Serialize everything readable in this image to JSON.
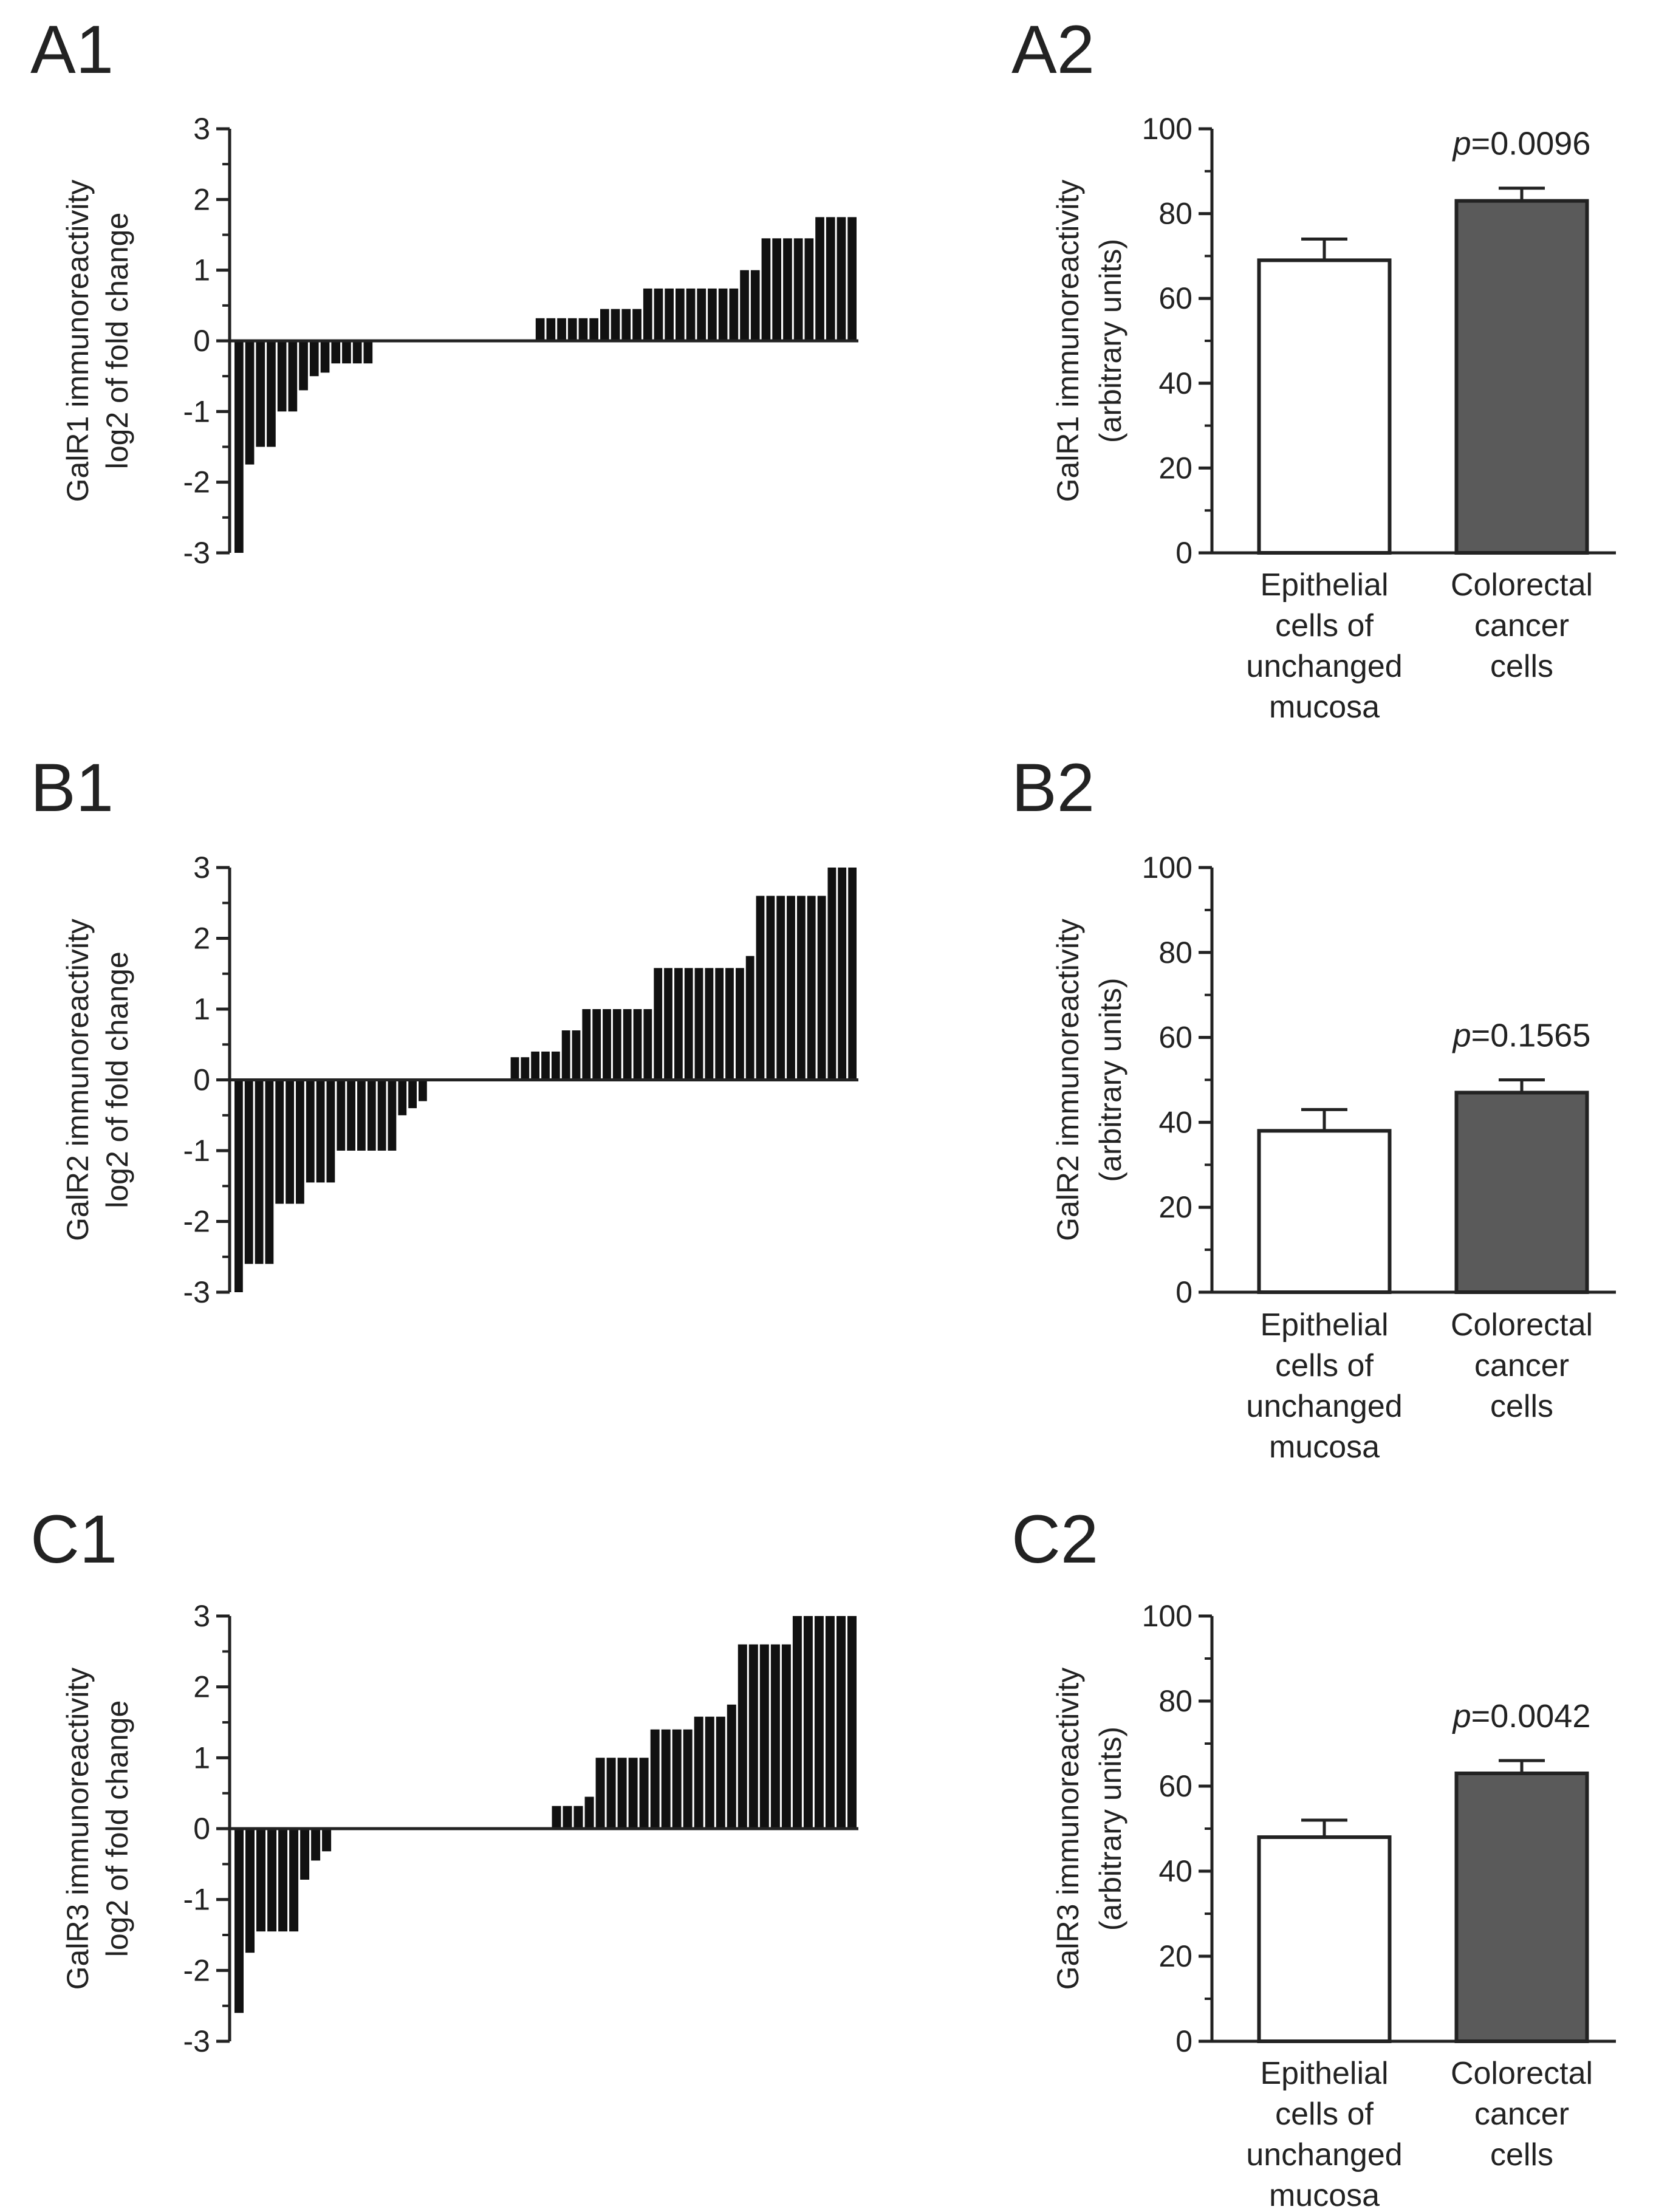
{
  "chart_data": [
    {
      "id": "A1",
      "panel_label": "A1",
      "type": "bar",
      "ylabel_lines": [
        "GalR1 immunoreactivity",
        "log2 of fold change"
      ],
      "ylim": [
        -3,
        3
      ],
      "yticks": [
        3,
        2,
        1,
        0,
        -1,
        -2,
        -3
      ],
      "values": [
        -3,
        -1.75,
        -1.5,
        -1.5,
        -1,
        -1,
        -0.7,
        -0.5,
        -0.45,
        -0.32,
        -0.32,
        -0.32,
        -0.32,
        0,
        0,
        0,
        0,
        0,
        0,
        0,
        0,
        0,
        0,
        0,
        0,
        0,
        0,
        0,
        0.32,
        0.32,
        0.32,
        0.32,
        0.32,
        0.32,
        0.45,
        0.45,
        0.45,
        0.45,
        0.74,
        0.74,
        0.74,
        0.74,
        0.74,
        0.74,
        0.74,
        0.74,
        0.74,
        1,
        1,
        1.45,
        1.45,
        1.45,
        1.45,
        1.45,
        1.75,
        1.75,
        1.75,
        1.75
      ]
    },
    {
      "id": "B1",
      "panel_label": "B1",
      "type": "bar",
      "ylabel_lines": [
        "GalR2 immunoreactivity",
        "log2 of fold change"
      ],
      "ylim": [
        -3,
        3
      ],
      "yticks": [
        3,
        2,
        1,
        0,
        -1,
        -2,
        -3
      ],
      "values": [
        -3,
        -2.6,
        -2.6,
        -2.6,
        -1.75,
        -1.75,
        -1.75,
        -1.45,
        -1.45,
        -1.45,
        -1,
        -1,
        -1,
        -1,
        -1,
        -1,
        -0.5,
        -0.4,
        -0.3,
        0,
        0,
        0,
        0,
        0,
        0,
        0,
        0,
        0.32,
        0.32,
        0.4,
        0.4,
        0.4,
        0.7,
        0.7,
        1,
        1,
        1,
        1,
        1,
        1,
        1,
        1.58,
        1.58,
        1.58,
        1.58,
        1.58,
        1.58,
        1.58,
        1.58,
        1.58,
        1.75,
        2.6,
        2.6,
        2.6,
        2.6,
        2.6,
        2.6,
        2.6,
        3,
        3,
        3
      ]
    },
    {
      "id": "C1",
      "panel_label": "C1",
      "type": "bar",
      "ylabel_lines": [
        "GalR3 immunoreactivity",
        "log2 of fold change"
      ],
      "ylim": [
        -3,
        3
      ],
      "yticks": [
        3,
        2,
        1,
        0,
        -1,
        -2,
        -3
      ],
      "values": [
        -2.6,
        -1.75,
        -1.45,
        -1.45,
        -1.45,
        -1.45,
        -0.72,
        -0.45,
        -0.32,
        0,
        0,
        0,
        0,
        0,
        0,
        0,
        0,
        0,
        0,
        0,
        0,
        0,
        0,
        0,
        0,
        0,
        0,
        0,
        0,
        0.32,
        0.32,
        0.32,
        0.45,
        1,
        1,
        1,
        1,
        1,
        1.4,
        1.4,
        1.4,
        1.4,
        1.58,
        1.58,
        1.58,
        1.75,
        2.6,
        2.6,
        2.6,
        2.6,
        2.6,
        3,
        3,
        3,
        3,
        3,
        3
      ]
    },
    {
      "id": "A2",
      "panel_label": "A2",
      "type": "bar",
      "ylabel_lines": [
        "GalR1 immunoreactivity",
        "(arbitrary units)"
      ],
      "ylim": [
        0,
        100
      ],
      "yticks": [
        100,
        80,
        60,
        40,
        20,
        0
      ],
      "categories": [
        [
          "Epithelial",
          "cells of",
          "unchanged",
          "mucosa"
        ],
        [
          "Colorectal",
          "cancer",
          "cells"
        ]
      ],
      "values": [
        69,
        83
      ],
      "errors": [
        5,
        3
      ],
      "bar_colors": [
        "#ffffff",
        "#5a5a5a"
      ],
      "p_value": {
        "prefix": "p",
        "text": "=0.0096"
      }
    },
    {
      "id": "B2",
      "panel_label": "B2",
      "type": "bar",
      "ylabel_lines": [
        "GalR2 immunoreactivity",
        "(arbitrary units)"
      ],
      "ylim": [
        0,
        100
      ],
      "yticks": [
        100,
        80,
        60,
        40,
        20,
        0
      ],
      "categories": [
        [
          "Epithelial",
          "cells of",
          "unchanged",
          "mucosa"
        ],
        [
          "Colorectal",
          "cancer",
          "cells"
        ]
      ],
      "values": [
        38,
        47
      ],
      "errors": [
        5,
        3
      ],
      "bar_colors": [
        "#ffffff",
        "#5a5a5a"
      ],
      "p_value": {
        "prefix": "p",
        "text": "=0.1565"
      }
    },
    {
      "id": "C2",
      "panel_label": "C2",
      "type": "bar",
      "ylabel_lines": [
        "GalR3 immunoreactivity",
        "(arbitrary units)"
      ],
      "ylim": [
        0,
        100
      ],
      "yticks": [
        100,
        80,
        60,
        40,
        20,
        0
      ],
      "categories": [
        [
          "Epithelial",
          "cells of",
          "unchanged",
          "mucosa"
        ],
        [
          "Colorectal",
          "cancer",
          "cells"
        ]
      ],
      "values": [
        48,
        63
      ],
      "errors": [
        4,
        3
      ],
      "bar_colors": [
        "#ffffff",
        "#5a5a5a"
      ],
      "p_value": {
        "prefix": "p",
        "text": "=0.0042"
      }
    }
  ]
}
